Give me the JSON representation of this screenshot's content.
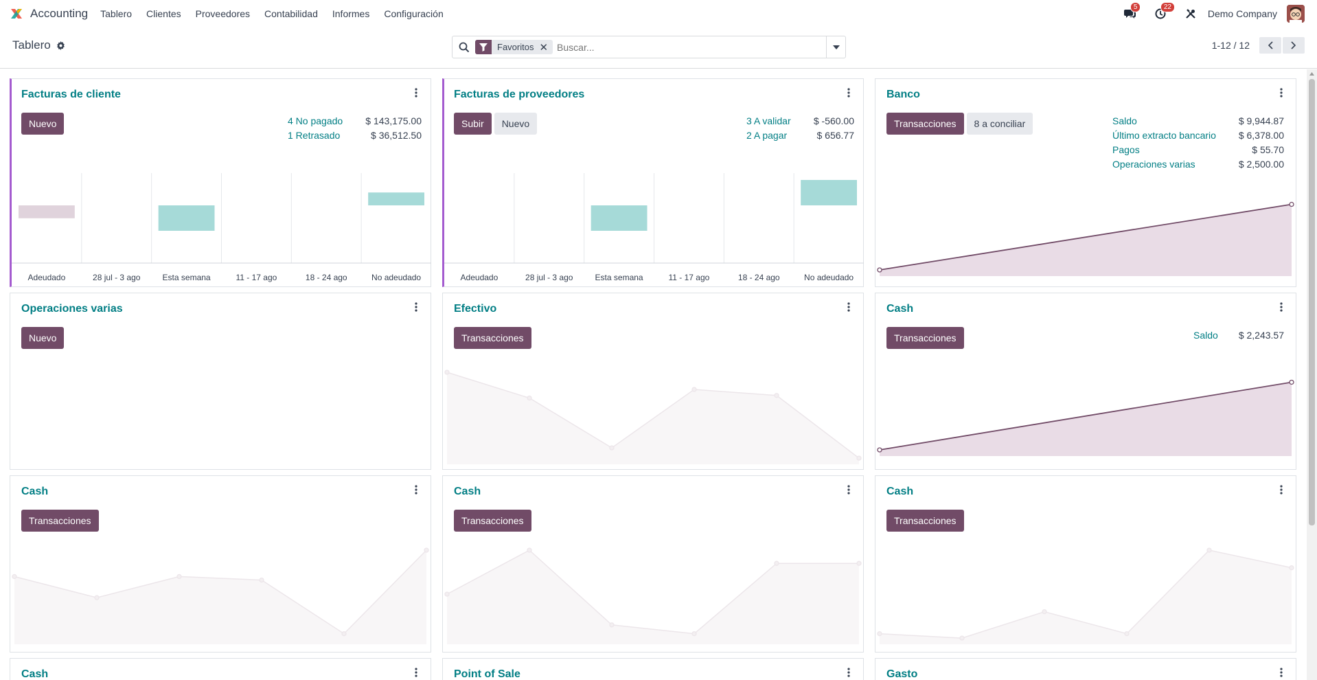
{
  "app": {
    "name": "Accounting",
    "menu": [
      "Tablero",
      "Clientes",
      "Proveedores",
      "Contabilidad",
      "Informes",
      "Configuración"
    ],
    "messages_badge": "5",
    "activities_badge": "22",
    "company": "Demo Company",
    "icons": [
      "app-logo-icon",
      "chat-icon",
      "clock-icon",
      "tools-icon",
      "avatar"
    ]
  },
  "control": {
    "title": "Tablero",
    "search_facet": "Favoritos",
    "search_placeholder": "Buscar...",
    "pager": "1-12 / 12"
  },
  "colors": {
    "primary": "#714b67",
    "link": "#017e84",
    "bar_past": "#e0d3dc",
    "bar_future": "#a6dad8",
    "accent": "#a45bcf"
  },
  "cards": {
    "customer_invoices": {
      "title": "Facturas de cliente",
      "buttons": [
        "Nuevo"
      ],
      "stats": [
        {
          "label": "4 No pagado",
          "value": "$ 143,175.00"
        },
        {
          "label": "1 Retrasado",
          "value": "$ 36,512.50"
        }
      ]
    },
    "vendor_bills": {
      "title": "Facturas de proveedores",
      "buttons": [
        "Subir",
        "Nuevo"
      ],
      "stats": [
        {
          "label": "3 A validar",
          "value": "$ -560.00"
        },
        {
          "label": "2 A pagar",
          "value": "$ 656.77"
        }
      ]
    },
    "bank": {
      "title": "Banco",
      "buttons": [
        "Transacciones",
        "8 a conciliar"
      ],
      "stats": [
        {
          "label": "Saldo",
          "value": "$ 9,944.87"
        },
        {
          "label": "Último extracto bancario",
          "value": "$ 6,378.00"
        },
        {
          "label": "Pagos",
          "value": "$ 55.70"
        },
        {
          "label": "Operaciones varias",
          "value": "$ 2,500.00"
        }
      ]
    },
    "misc": {
      "title": "Operaciones varias",
      "buttons": [
        "Nuevo"
      ]
    },
    "efectivo": {
      "title": "Efectivo",
      "buttons": [
        "Transacciones"
      ]
    },
    "cash1": {
      "title": "Cash",
      "buttons": [
        "Transacciones"
      ],
      "stats": [
        {
          "label": "Saldo",
          "value": "$ 2,243.57"
        }
      ]
    },
    "cash2": {
      "title": "Cash",
      "buttons": [
        "Transacciones"
      ]
    },
    "cash3": {
      "title": "Cash",
      "buttons": [
        "Transacciones"
      ]
    },
    "cash4": {
      "title": "Cash",
      "buttons": [
        "Transacciones"
      ]
    },
    "cash5": {
      "title": "Cash"
    },
    "pos": {
      "title": "Point of Sale"
    },
    "gasto": {
      "title": "Gasto"
    }
  },
  "chart_data": [
    {
      "type": "bar",
      "chart": "customer_invoices",
      "categories": [
        "Adeudado",
        "28 jul - 3 ago",
        "Esta semana",
        "11 - 17 ago",
        "18 - 24 ago",
        "No adeudado"
      ],
      "values": [
        -36512.5,
        0,
        -72000,
        0,
        0,
        36512.5
      ],
      "colors": [
        "#e0d3dc",
        null,
        "#a6dad8",
        null,
        null,
        "#a6dad8"
      ]
    },
    {
      "type": "bar",
      "chart": "vendor_bills",
      "categories": [
        "Adeudado",
        "28 jul - 3 ago",
        "Esta semana",
        "11 - 17 ago",
        "18 - 24 ago",
        "No adeudado"
      ],
      "values": [
        0,
        0,
        -500,
        0,
        0,
        500
      ],
      "colors": [
        null,
        null,
        "#a6dad8",
        null,
        null,
        "#a6dad8"
      ]
    },
    {
      "type": "area",
      "chart": "bank",
      "values": [
        0,
        9944.87
      ],
      "ylim": [
        0,
        10000
      ]
    },
    {
      "type": "area",
      "chart": "efectivo",
      "values": [
        100,
        70,
        12,
        80,
        73,
        0
      ],
      "ylim": [
        0,
        100
      ],
      "sample": true
    },
    {
      "type": "area",
      "chart": "cash1",
      "values": [
        0,
        2243.57
      ],
      "ylim": [
        0,
        2300
      ]
    },
    {
      "type": "area",
      "chart": "cash2",
      "values": [
        70,
        46,
        70,
        66,
        5,
        100
      ],
      "ylim": [
        0,
        100
      ],
      "sample": true
    },
    {
      "type": "area",
      "chart": "cash3",
      "values": [
        50,
        100,
        15,
        5,
        85,
        85
      ],
      "ylim": [
        0,
        100
      ],
      "sample": true
    },
    {
      "type": "area",
      "chart": "cash4",
      "values": [
        5,
        0,
        30,
        5,
        100,
        80
      ],
      "ylim": [
        0,
        100
      ],
      "sample": true
    }
  ]
}
